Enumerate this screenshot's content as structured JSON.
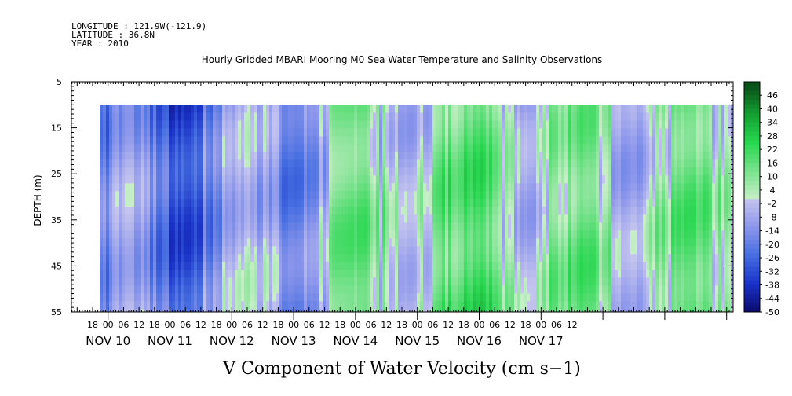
{
  "header": {
    "longitude": "LONGITUDE : 121.9W(-121.9)",
    "latitude": "LATITUDE : 36.8N",
    "year": "YEAR : 2010",
    "title": "Hourly Gridded MBARI Mooring M0 Sea Water Temperature and Salinity Observations"
  },
  "chart_data": {
    "type": "heatmap",
    "title": "Hourly Gridded MBARI Mooring M0 Sea Water Temperature and Salinity Observations",
    "xlabel": "V Component of Water Velocity (cm s−1)",
    "ylabel": "DEPTH (m)",
    "ylim": [
      5,
      55
    ],
    "y_inverted": true,
    "y_ticks": [
      "5",
      "15",
      "25",
      "35",
      "45",
      "55"
    ],
    "x_hour_ticks": [
      "18",
      "00",
      "06",
      "12",
      "18",
      "00",
      "06",
      "12",
      "18",
      "00",
      "06",
      "12",
      "18",
      "00",
      "06",
      "12",
      "18",
      "00",
      "06",
      "12",
      "18",
      "00",
      "06",
      "12",
      "18",
      "00",
      "06",
      "12",
      "18",
      "00",
      "06",
      "12"
    ],
    "x_day_labels": [
      "NOV 10",
      "NOV 11",
      "NOV 12",
      "NOV 13",
      "NOV 14",
      "NOV 15",
      "NOV 16",
      "NOV 17"
    ],
    "data_depth_range_m": [
      10,
      55
    ],
    "colorbar": {
      "labels": [
        "46",
        "40",
        "34",
        "28",
        "22",
        "16",
        "10",
        "4",
        "-2",
        "-8",
        "-14",
        "-20",
        "-26",
        "-32",
        "-38",
        "-44",
        "-50"
      ],
      "range": [
        -50,
        52
      ]
    },
    "daily_mean_v_cm_s": {
      "NOV 10": -18,
      "NOV 11": -22,
      "NOV 12": -16,
      "NOV 13": -8,
      "NOV 14": 2,
      "NOV 15": 8,
      "NOV 16": 9,
      "NOV 17": 4
    }
  }
}
